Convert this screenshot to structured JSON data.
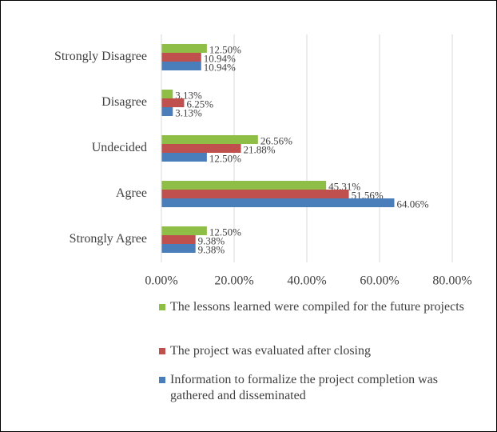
{
  "chart_data": {
    "type": "bar",
    "orientation": "horizontal",
    "categories": [
      "Strongly Disagree",
      "Disagree",
      "Undecided",
      "Agree",
      "Strongly Agree"
    ],
    "series": [
      {
        "name": "The lessons learned were compiled for the future projects",
        "color": "#8fbe46",
        "values": [
          12.5,
          3.13,
          26.56,
          45.31,
          12.5
        ],
        "value_labels": [
          "12.50%",
          "3.13%",
          "26.56%",
          "45.31%",
          "12.50%"
        ]
      },
      {
        "name": "The project was evaluated after closing",
        "color": "#c0504d",
        "values": [
          10.94,
          6.25,
          21.88,
          51.56,
          9.38
        ],
        "value_labels": [
          "10.94%",
          "6.25%",
          "21.88%",
          "51.56%",
          "9.38%"
        ]
      },
      {
        "name": "Information to formalize the project completion was gathered and disseminated",
        "color": "#4a7ebb",
        "values": [
          10.94,
          3.13,
          12.5,
          64.06,
          9.38
        ],
        "value_labels": [
          "10.94%",
          "3.13%",
          "12.50%",
          "64.06%",
          "9.38%"
        ]
      }
    ],
    "xlim": [
      0,
      80
    ],
    "xticks": [
      {
        "value": 0,
        "label": "0.00%"
      },
      {
        "value": 20,
        "label": "20.00%"
      },
      {
        "value": 40,
        "label": "40.00%"
      },
      {
        "value": 60,
        "label": "60.00%"
      },
      {
        "value": 80,
        "label": "80.00%"
      }
    ],
    "grid": true,
    "legend": "bottom"
  }
}
